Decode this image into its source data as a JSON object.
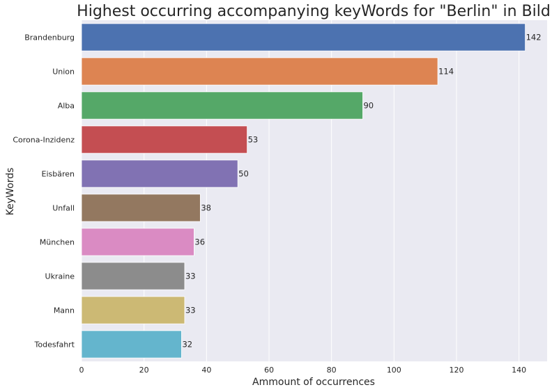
{
  "chart_data": {
    "type": "bar",
    "orientation": "horizontal",
    "title": "Highest occurring accompanying keyWords for \"Berlin\" in Bild",
    "xlabel": "Ammount of occurrences",
    "ylabel": "KeyWords",
    "categories": [
      "Brandenburg",
      "Union",
      "Alba",
      "Corona-Inzidenz",
      "Eisbären",
      "Unfall",
      "München",
      "Ukraine",
      "Mann",
      "Todesfahrt"
    ],
    "values": [
      142,
      114,
      90,
      53,
      50,
      38,
      36,
      33,
      33,
      32
    ],
    "data_labels": [
      "142",
      "114",
      "90",
      "53",
      "50",
      "38",
      "36",
      "33",
      "33",
      "32"
    ],
    "xlim": [
      0,
      149
    ],
    "xticks": [
      0,
      20,
      40,
      60,
      80,
      100,
      120,
      140
    ],
    "xtick_labels": [
      "0",
      "20",
      "40",
      "60",
      "80",
      "100",
      "120",
      "140"
    ],
    "grid": true,
    "colors": [
      "#4c72b0",
      "#dd8452",
      "#55a868",
      "#c44e52",
      "#8172b3",
      "#937860",
      "#da8bc3",
      "#8c8c8c",
      "#ccb974",
      "#64b5cd"
    ],
    "background": "#eaeaf2"
  }
}
